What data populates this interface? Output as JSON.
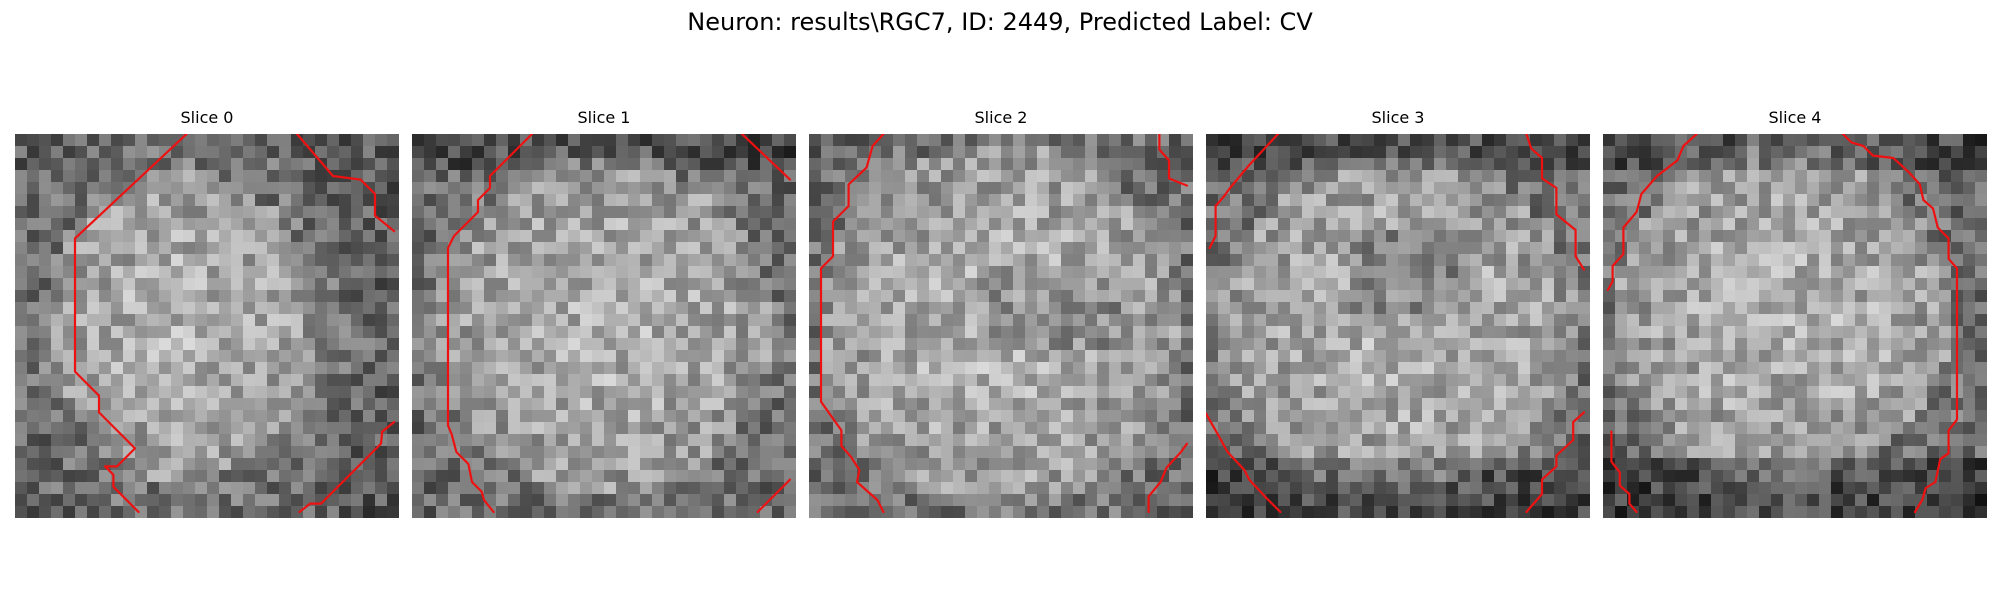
{
  "figure": {
    "title": "Neuron: results\\RGC7, ID: 2449, Predicted Label: CV"
  },
  "colors": {
    "contour": "#ee1111",
    "background": "#ffffff"
  },
  "colormap": "gray",
  "grid_size": 32,
  "slices": [
    {
      "title": "Slice 0",
      "contours": [
        [
          [
            14.3,
            0
          ],
          [
            5,
            8.7
          ],
          [
            5,
            19.8
          ],
          [
            7,
            21.8
          ],
          [
            7,
            23.2
          ],
          [
            10,
            26.2
          ],
          [
            8.5,
            27.7
          ],
          [
            7.5,
            27.7
          ],
          [
            8.2,
            28.4
          ],
          [
            8.2,
            29.4
          ],
          [
            10.3,
            31.5
          ]
        ],
        [
          [
            23.5,
            0
          ],
          [
            26.5,
            3.5
          ],
          [
            28.8,
            3.8
          ],
          [
            30,
            5
          ],
          [
            30,
            6.8
          ],
          [
            31.6,
            8.1
          ]
        ],
        [
          [
            23.7,
            31.5
          ],
          [
            24.6,
            30.8
          ],
          [
            25.5,
            30.8
          ],
          [
            30.5,
            25.8
          ],
          [
            30.6,
            24.8
          ],
          [
            31.6,
            24
          ]
        ]
      ]
    },
    {
      "title": "Slice 1",
      "contours": [
        [
          [
            10,
            0
          ],
          [
            6.5,
            3.5
          ],
          [
            6.5,
            4.5
          ],
          [
            5.5,
            5.5
          ],
          [
            5.5,
            6.5
          ],
          [
            3.5,
            8.5
          ],
          [
            3,
            9.5
          ],
          [
            3,
            24.3
          ],
          [
            3.3,
            25
          ],
          [
            3.7,
            26.5
          ],
          [
            4.7,
            27.5
          ],
          [
            5,
            29
          ],
          [
            5.8,
            29.8
          ],
          [
            6,
            30.5
          ],
          [
            6.8,
            31.5
          ]
        ],
        [
          [
            27.5,
            0
          ],
          [
            31.5,
            3.8
          ]
        ],
        [
          [
            28.8,
            31.5
          ],
          [
            31.5,
            28.8
          ]
        ]
      ]
    },
    {
      "title": "Slice 2",
      "contours": [
        [
          [
            6.2,
            0
          ],
          [
            5.3,
            1
          ],
          [
            4.8,
            2.8
          ],
          [
            3.3,
            4.2
          ],
          [
            3.3,
            6
          ],
          [
            2,
            7.3
          ],
          [
            2,
            10.2
          ],
          [
            1,
            11.2
          ],
          [
            1,
            22.3
          ],
          [
            2.7,
            24.7
          ],
          [
            2.7,
            26
          ],
          [
            3.5,
            26.9
          ],
          [
            4.2,
            28
          ],
          [
            4,
            29
          ],
          [
            5.7,
            30.5
          ],
          [
            6.2,
            31.5
          ]
        ],
        [
          [
            29.2,
            0
          ],
          [
            29.2,
            1.3
          ],
          [
            30,
            2.2
          ],
          [
            30,
            3.7
          ],
          [
            31.5,
            4.3
          ]
        ],
        [
          [
            28.3,
            31.5
          ],
          [
            28.3,
            30.2
          ],
          [
            29.3,
            29
          ],
          [
            29.8,
            27.8
          ],
          [
            31,
            26.5
          ],
          [
            31.5,
            25.8
          ]
        ]
      ]
    },
    {
      "title": "Slice 3",
      "contours": [
        [
          [
            6,
            0
          ],
          [
            3.5,
            2.7
          ],
          [
            2,
            4.5
          ],
          [
            1.5,
            5.2
          ],
          [
            0.8,
            6
          ],
          [
            0.8,
            8.5
          ],
          [
            0.3,
            9.5
          ]
        ],
        [
          [
            26.7,
            0
          ],
          [
            27.1,
            1.2
          ],
          [
            28,
            2
          ],
          [
            28,
            3.7
          ],
          [
            29.2,
            4.5
          ],
          [
            29.2,
            6.7
          ],
          [
            30.8,
            8
          ],
          [
            30.8,
            10.2
          ],
          [
            31.5,
            11.3
          ]
        ],
        [
          [
            0,
            23.3
          ],
          [
            0.8,
            24.7
          ],
          [
            1.8,
            26.5
          ],
          [
            3.2,
            28
          ],
          [
            3.6,
            28.8
          ],
          [
            5,
            30.3
          ],
          [
            6.2,
            31.5
          ]
        ],
        [
          [
            26.7,
            31.5
          ],
          [
            28,
            30
          ],
          [
            28,
            28.8
          ],
          [
            29.2,
            27.7
          ],
          [
            29.2,
            26.8
          ],
          [
            30.6,
            25.5
          ],
          [
            30.6,
            24
          ],
          [
            31.5,
            23.2
          ]
        ]
      ]
    },
    {
      "title": "Slice 4",
      "contours": [
        [
          [
            7.8,
            0
          ],
          [
            6.7,
            1
          ],
          [
            6.2,
            2.2
          ],
          [
            4.5,
            3.5
          ],
          [
            3.2,
            5
          ],
          [
            2.8,
            6.5
          ],
          [
            1.7,
            7.8
          ],
          [
            1.7,
            10
          ],
          [
            0.8,
            11
          ],
          [
            0.8,
            12.3
          ],
          [
            0.4,
            13
          ]
        ],
        [
          [
            20,
            0
          ],
          [
            20.7,
            0.7
          ],
          [
            21.7,
            1
          ],
          [
            22.5,
            1.8
          ],
          [
            24.2,
            2
          ],
          [
            25.5,
            3.2
          ],
          [
            26.4,
            4.2
          ],
          [
            26.7,
            5.5
          ],
          [
            27.5,
            6.2
          ],
          [
            27.9,
            7.8
          ],
          [
            28.8,
            8.7
          ],
          [
            28.8,
            10.4
          ],
          [
            29.5,
            11.2
          ],
          [
            29.5,
            23.8
          ],
          [
            28.8,
            24.7
          ],
          [
            28.8,
            26.6
          ],
          [
            28.1,
            27.1
          ],
          [
            27.7,
            29
          ],
          [
            26.9,
            29.5
          ],
          [
            26.6,
            30.5
          ],
          [
            26,
            31.5
          ]
        ],
        [
          [
            0.7,
            24.8
          ],
          [
            0.7,
            27.3
          ],
          [
            1.4,
            28.2
          ],
          [
            1.4,
            29.3
          ],
          [
            2.2,
            30
          ],
          [
            2.2,
            30.8
          ],
          [
            2.8,
            31.5
          ]
        ]
      ]
    }
  ]
}
